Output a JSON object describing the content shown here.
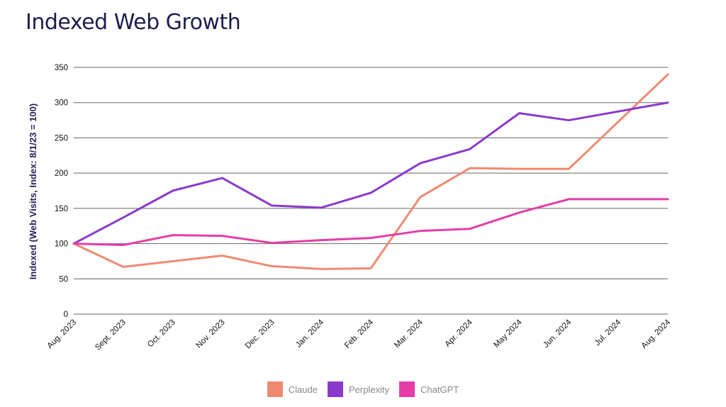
{
  "title": "Indexed Web Growth",
  "chart_data": {
    "type": "line",
    "title": "Indexed Web Growth",
    "xlabel": "",
    "ylabel": "Indexed (Web Visits, Index: 8/1/23 = 100)",
    "categories": [
      "Aug. 2023",
      "Sept. 2023",
      "Oct. 2023",
      "Nov. 2023",
      "Dec. 2023",
      "Jan. 2024",
      "Feb. 2024",
      "Mar. 2024",
      "Apr. 2024",
      "May 2024",
      "Jun. 2024",
      "Jul. 2024",
      "Aug. 2024"
    ],
    "ylim": [
      0,
      350
    ],
    "yticks": [
      0,
      50,
      100,
      150,
      200,
      250,
      300,
      350
    ],
    "grid": true,
    "legend_position": "bottom",
    "series": [
      {
        "name": "Claude",
        "color": "#ef8a72",
        "values": [
          100,
          67,
          75,
          83,
          68,
          64,
          65,
          166,
          207,
          206,
          206,
          null,
          340
        ]
      },
      {
        "name": "Perplexity",
        "color": "#8a3acb",
        "values": [
          100,
          137,
          175,
          193,
          154,
          151,
          172,
          214,
          234,
          285,
          275,
          null,
          300
        ]
      },
      {
        "name": "ChatGPT",
        "color": "#e43da6",
        "values": [
          100,
          98,
          112,
          111,
          101,
          105,
          108,
          118,
          121,
          144,
          163,
          null,
          163
        ]
      }
    ]
  }
}
